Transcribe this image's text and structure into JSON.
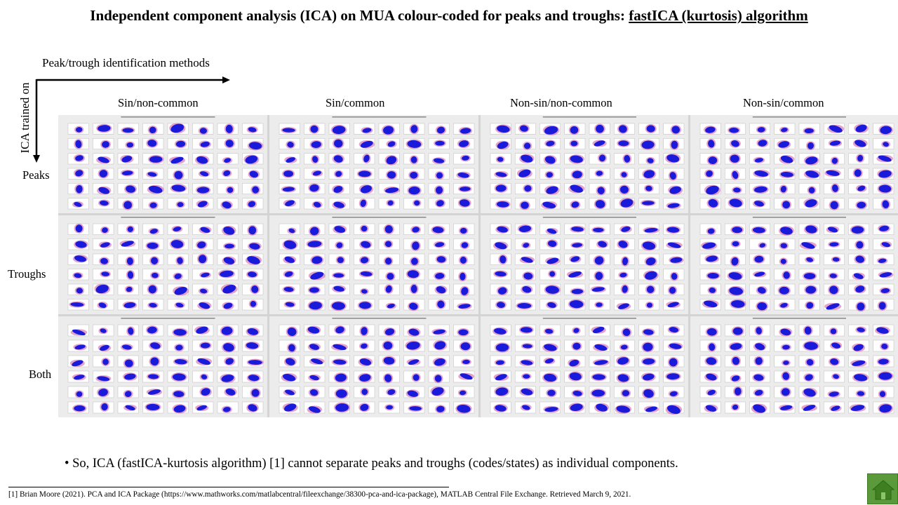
{
  "title": {
    "main": "Independent component analysis (ICA) on MUA colour-coded for peaks and troughs: ",
    "underlined": "fastICA (kurtosis) algorithm"
  },
  "axes": {
    "x_label": "Peak/trough identification  methods",
    "y_label": "ICA trained on"
  },
  "columns": [
    "Sin/non-common",
    "Sin/common",
    "Non-sin/non-common",
    "Non-sin/common"
  ],
  "rows": [
    "Peaks",
    "Troughs",
    "Both"
  ],
  "panel_colors": {
    "blob": "#1a1adb",
    "halo": "#c2328a",
    "background": "#ececec"
  },
  "bullet": "• So, ICA (fastICA-kurtosis algorithm) [1] cannot separate peaks and troughs (codes/states) as individual components.",
  "footnote": "[1] Brian Moore (2021).  PCA and ICA Package (https://www.mathworks.com/matlabcentral/fileexchange/38300-pca-and-ica-package),  MATLAB Central File Exchange. Retrieved March 9, 2021.",
  "home_button": {
    "icon": "home-icon",
    "color": "#5b9a3b"
  }
}
